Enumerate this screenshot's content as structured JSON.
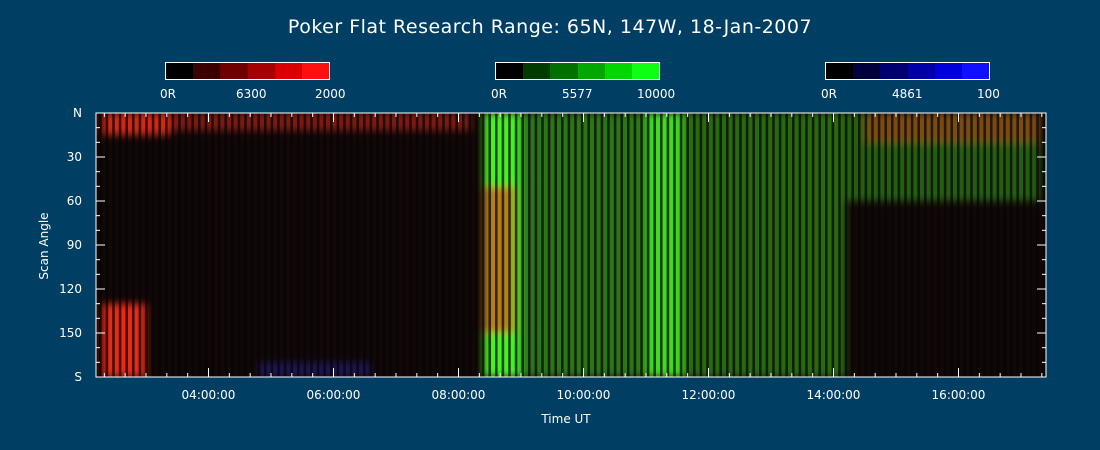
{
  "title": "Poker Flat Research Range: 65N, 147W, 18-Jan-2007",
  "colorbars": [
    {
      "min_label": "0R",
      "mid_label": "6300",
      "max_label": "2000",
      "colors": [
        "#000000",
        "#3c0000",
        "#700000",
        "#a80000",
        "#d80000",
        "#ff1010"
      ]
    },
    {
      "min_label": "0R",
      "mid_label": "5577",
      "max_label": "10000",
      "colors": [
        "#000000",
        "#003c00",
        "#007000",
        "#00a800",
        "#00d800",
        "#10ff10"
      ]
    },
    {
      "min_label": "0R",
      "mid_label": "4861",
      "max_label": "100",
      "colors": [
        "#000000",
        "#00003c",
        "#000070",
        "#0000a8",
        "#0000d8",
        "#1010ff"
      ]
    }
  ],
  "chart_data": {
    "type": "heatmap",
    "title": "Poker Flat Research Range: 65N, 147W, 18-Jan-2007",
    "xlabel": "Time UT",
    "ylabel": "Scan Angle",
    "x_ticks": [
      "04:00:00",
      "06:00:00",
      "08:00:00",
      "10:00:00",
      "12:00:00",
      "14:00:00",
      "16:00:00"
    ],
    "x_tick_hours": [
      4,
      6,
      8,
      10,
      12,
      14,
      16
    ],
    "xlim_hours": [
      2.2,
      17.4
    ],
    "y_ticks": [
      "N",
      "30",
      "60",
      "90",
      "120",
      "150",
      "S"
    ],
    "y_tick_values": [
      0,
      30,
      60,
      90,
      120,
      150,
      180
    ],
    "ylim": [
      0,
      180
    ],
    "channels": [
      "6300 (red)",
      "5577 (green)",
      "4861 (blue)"
    ],
    "emission_features": [
      {
        "channel": "red",
        "t_start": 2.3,
        "t_end": 3.0,
        "angle_start": 130,
        "angle_end": 180,
        "intensity": 0.9
      },
      {
        "channel": "red",
        "t_start": 2.3,
        "t_end": 3.4,
        "angle_start": 0,
        "angle_end": 15,
        "intensity": 0.8
      },
      {
        "channel": "red",
        "t_start": 3.4,
        "t_end": 8.2,
        "angle_start": 0,
        "angle_end": 12,
        "intensity": 0.45
      },
      {
        "channel": "green",
        "t_start": 8.4,
        "t_end": 9.0,
        "angle_start": 0,
        "angle_end": 180,
        "intensity": 0.95
      },
      {
        "channel": "red",
        "t_start": 8.4,
        "t_end": 8.9,
        "angle_start": 50,
        "angle_end": 150,
        "intensity": 0.6
      },
      {
        "channel": "green",
        "t_start": 9.0,
        "t_end": 11.0,
        "angle_start": 0,
        "angle_end": 180,
        "intensity": 0.45
      },
      {
        "channel": "green",
        "t_start": 11.0,
        "t_end": 11.6,
        "angle_start": 0,
        "angle_end": 180,
        "intensity": 0.85
      },
      {
        "channel": "green",
        "t_start": 11.6,
        "t_end": 14.2,
        "angle_start": 0,
        "angle_end": 180,
        "intensity": 0.4
      },
      {
        "channel": "green",
        "t_start": 14.2,
        "t_end": 17.3,
        "angle_start": 0,
        "angle_end": 60,
        "intensity": 0.35
      },
      {
        "channel": "red",
        "t_start": 14.5,
        "t_end": 17.3,
        "angle_start": 0,
        "angle_end": 20,
        "intensity": 0.4
      },
      {
        "channel": "blue",
        "t_start": 4.8,
        "t_end": 6.6,
        "angle_start": 170,
        "angle_end": 180,
        "intensity": 0.3
      }
    ],
    "grid": false,
    "legend": "colorbars-top"
  }
}
